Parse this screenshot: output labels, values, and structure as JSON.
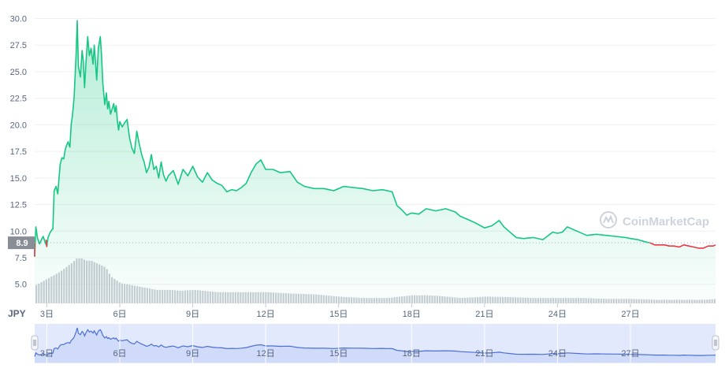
{
  "chart_data": {
    "type": "area",
    "currency_label": "JPY",
    "current_price_label": "8.9",
    "current_price": 8.9,
    "watermark": "CoinMarketCap",
    "ylim": [
      3.2,
      31
    ],
    "y_ticks": [
      {
        "value": 5.0,
        "label": "5.0"
      },
      {
        "value": 7.5,
        "label": "7.5"
      },
      {
        "value": 10.0,
        "label": "10.0"
      },
      {
        "value": 12.5,
        "label": "12.5"
      },
      {
        "value": 15.0,
        "label": "15.0"
      },
      {
        "value": 17.5,
        "label": "17.5"
      },
      {
        "value": 20.0,
        "label": "20.0"
      },
      {
        "value": 22.5,
        "label": "22.5"
      },
      {
        "value": 25.0,
        "label": "25.0"
      },
      {
        "value": 27.5,
        "label": "27.5"
      },
      {
        "value": 30.0,
        "label": "30.0"
      }
    ],
    "x_ticks": [
      {
        "day": 3,
        "label": "3日"
      },
      {
        "day": 6,
        "label": "6日"
      },
      {
        "day": 9,
        "label": "9日"
      },
      {
        "day": 12,
        "label": "12日"
      },
      {
        "day": 15,
        "label": "15日"
      },
      {
        "day": 18,
        "label": "18日"
      },
      {
        "day": 21,
        "label": "21日"
      },
      {
        "day": 24,
        "label": "24日"
      },
      {
        "day": 27,
        "label": "27日"
      }
    ],
    "xlim": [
      2.5,
      30.5
    ],
    "colors": {
      "up": "#16c784",
      "down": "#ea3943",
      "volume": "#c9cdd4",
      "navigator_line": "#4a6fd8",
      "navigator_fill": "#e3e9fd",
      "grid": "#eef0f3",
      "text": "#58667e"
    },
    "series": [
      {
        "x": [
          2.5,
          2.55,
          2.62,
          2.7,
          2.78,
          2.85,
          2.92,
          3.0,
          3.05,
          3.12,
          3.2,
          3.25,
          3.3,
          3.38,
          3.45,
          3.5,
          3.55,
          3.62,
          3.7,
          3.75,
          3.8,
          3.87,
          3.95,
          4.0,
          4.05,
          4.12,
          4.2,
          4.25,
          4.3,
          4.38,
          4.45,
          4.5,
          4.55,
          4.6,
          4.68,
          4.75,
          4.82,
          4.9,
          4.95,
          5.0,
          5.05,
          5.12,
          5.2,
          5.25,
          5.3,
          5.38,
          5.45,
          5.5,
          5.55,
          5.62,
          5.7,
          5.75,
          5.8,
          5.85,
          5.9,
          5.95,
          6.0,
          6.1,
          6.2,
          6.3,
          6.4,
          6.5,
          6.6,
          6.7,
          6.8,
          6.9,
          7.0,
          7.1,
          7.2,
          7.3,
          7.4,
          7.5,
          7.6,
          7.7,
          7.8,
          7.9,
          8.0,
          8.2,
          8.4,
          8.6,
          8.8,
          9.0,
          9.2,
          9.4,
          9.6,
          9.8,
          10.0,
          10.2,
          10.4,
          10.6,
          10.8,
          11.0,
          11.2,
          11.4,
          11.6,
          11.8,
          12.0,
          12.3,
          12.6,
          13.0,
          13.3,
          13.6,
          14.0,
          14.4,
          14.8,
          15.2,
          15.6,
          16.0,
          16.4,
          16.8,
          17.0,
          17.2,
          17.4,
          17.6,
          17.8,
          18.0,
          18.3,
          18.6,
          19.0,
          19.4,
          19.8,
          20.0,
          20.3,
          20.6,
          21.0,
          21.3,
          21.6,
          21.8,
          22.0,
          22.3,
          22.6,
          23.0,
          23.4,
          23.8,
          24.0,
          24.2,
          24.4,
          24.8,
          25.2,
          25.6,
          26.0,
          26.4,
          26.8,
          27.0,
          27.3,
          27.6,
          27.8
        ],
        "y": [
          7.6,
          10.4,
          9.3,
          8.8,
          9.2,
          9.5,
          9.0,
          8.6,
          9.4,
          9.8,
          10.1,
          10.2,
          13.8,
          14.2,
          13.5,
          15.0,
          16.3,
          16.9,
          16.8,
          17.6,
          18.0,
          18.4,
          17.9,
          20.0,
          20.8,
          22.5,
          26.5,
          29.8,
          25.5,
          24.5,
          27.0,
          26.0,
          23.5,
          25.5,
          28.3,
          26.5,
          27.2,
          25.7,
          27.5,
          26.0,
          24.2,
          27.2,
          28.3,
          26.5,
          24.0,
          21.9,
          23.0,
          21.5,
          22.2,
          21.0,
          21.6,
          22.0,
          21.2,
          21.8,
          20.4,
          19.5,
          20.3,
          19.8,
          20.2,
          20.5,
          18.8,
          17.8,
          17.3,
          19.4,
          18.2,
          17.2,
          16.5,
          15.5,
          16.0,
          17.2,
          15.8,
          16.1,
          15.0,
          16.5,
          15.3,
          14.7,
          15.2,
          15.7,
          14.4,
          15.8,
          15.2,
          16.1,
          15.1,
          14.6,
          15.5,
          14.8,
          14.5,
          14.3,
          13.7,
          13.9,
          13.8,
          14.1,
          14.5,
          15.5,
          16.3,
          16.7,
          15.8,
          15.8,
          15.5,
          15.6,
          14.6,
          14.2,
          14.0,
          14.0,
          13.8,
          14.2,
          14.1,
          14.0,
          13.8,
          13.9,
          13.8,
          13.7,
          12.4,
          12.0,
          11.5,
          11.7,
          11.6,
          12.1,
          11.9,
          12.1,
          11.8,
          11.4,
          11.1,
          10.8,
          10.3,
          10.5,
          11.0,
          10.4,
          10.0,
          9.4,
          9.3,
          9.4,
          9.2,
          9.9,
          9.8,
          9.9,
          10.4,
          10.0,
          9.6,
          9.7,
          9.6,
          9.5,
          9.4,
          9.3,
          9.2,
          9.0,
          8.9
        ]
      },
      {
        "x": [
          27.8,
          28.0,
          28.2,
          28.4,
          28.6,
          28.8,
          29.0,
          29.2,
          29.4,
          29.6,
          29.8,
          30.0,
          30.2,
          30.4,
          30.5
        ],
        "y": [
          8.9,
          8.7,
          8.7,
          8.7,
          8.6,
          8.6,
          8.5,
          8.7,
          8.6,
          8.5,
          8.4,
          8.4,
          8.6,
          8.6,
          8.7
        ]
      }
    ],
    "volume_index": {
      "x": [
        2.5,
        3.0,
        3.5,
        4.0,
        4.2,
        4.4,
        4.6,
        4.8,
        5.0,
        5.2,
        5.4,
        5.6,
        6.0,
        6.5,
        7.0,
        7.5,
        8.0,
        8.5,
        9.0,
        10.0,
        11.0,
        12.0,
        13.0,
        14.0,
        15.0,
        16.0,
        17.0,
        17.5,
        18.0,
        18.5,
        19.0,
        20.0,
        21.0,
        22.0,
        23.0,
        24.0,
        25.0,
        26.0,
        27.0,
        28.0,
        29.0,
        30.0,
        30.5
      ],
      "y": [
        0.4,
        0.55,
        0.7,
        0.9,
        1.0,
        1.0,
        0.95,
        0.95,
        0.9,
        0.85,
        0.8,
        0.6,
        0.45,
        0.4,
        0.35,
        0.3,
        0.3,
        0.28,
        0.3,
        0.25,
        0.25,
        0.25,
        0.22,
        0.2,
        0.15,
        0.12,
        0.12,
        0.15,
        0.18,
        0.18,
        0.17,
        0.12,
        0.15,
        0.14,
        0.12,
        0.12,
        0.12,
        0.1,
        0.1,
        0.08,
        0.08,
        0.08,
        0.1
      ]
    }
  }
}
